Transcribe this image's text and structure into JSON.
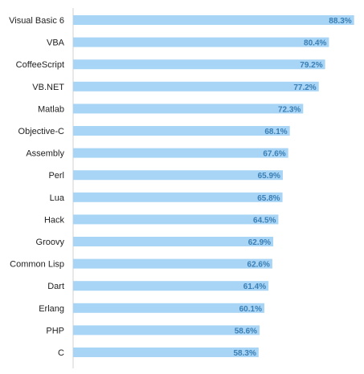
{
  "chart_data": {
    "type": "bar",
    "orientation": "horizontal",
    "title": "",
    "xlabel": "",
    "ylabel": "",
    "grid": false,
    "legend": "none",
    "xlim": [
      0,
      100
    ],
    "value_suffix": "%",
    "categories": [
      "Visual Basic 6",
      "VBA",
      "CoffeeScript",
      "VB.NET",
      "Matlab",
      "Objective-C",
      "Assembly",
      "Perl",
      "Lua",
      "Hack",
      "Groovy",
      "Common Lisp",
      "Dart",
      "Erlang",
      "PHP",
      "C"
    ],
    "values": [
      88.3,
      80.4,
      79.2,
      77.2,
      72.3,
      68.1,
      67.6,
      65.9,
      65.8,
      64.5,
      62.9,
      62.6,
      61.4,
      60.1,
      58.6,
      58.3
    ],
    "value_labels": [
      "88.3%",
      "80.4%",
      "79.2%",
      "77.2%",
      "72.3%",
      "68.1%",
      "67.6%",
      "65.9%",
      "65.8%",
      "64.5%",
      "62.9%",
      "62.6%",
      "61.4%",
      "60.1%",
      "58.6%",
      "58.3%"
    ],
    "colors": {
      "bar": "#a8d4f5",
      "value_text": "#3a7fb5",
      "label_text": "#222222",
      "axis": "#d0d0d0"
    }
  }
}
